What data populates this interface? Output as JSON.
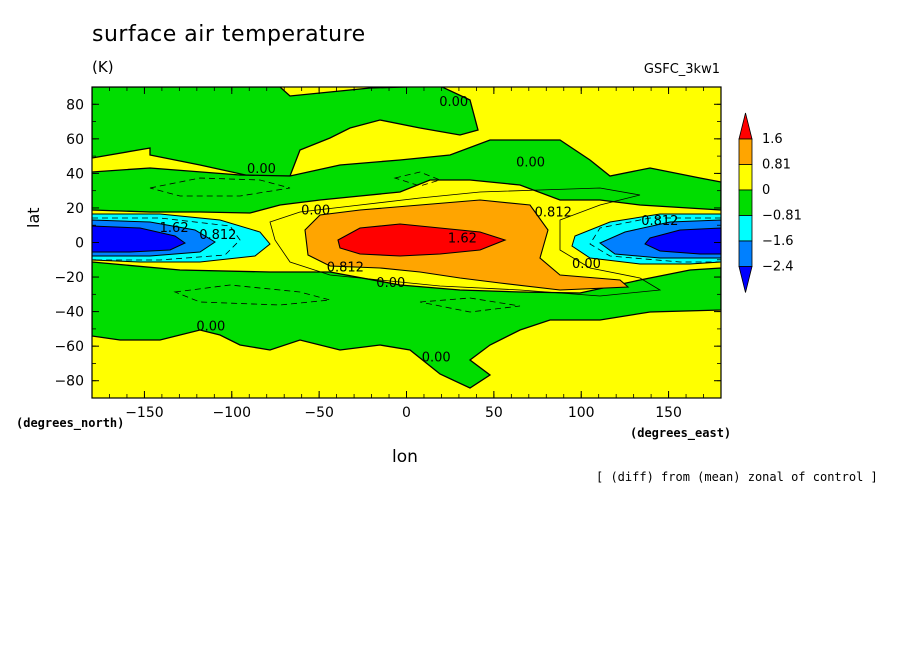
{
  "chart_data": {
    "type": "heatmap",
    "title": "surface air temperature",
    "units": "(K)",
    "model_label": "GSFC_3kw1",
    "xlabel": "lon",
    "ylabel": "lat",
    "x_unit_label": "(degrees_east)",
    "y_unit_label": "(degrees_north)",
    "footnote": "[ (diff) from (mean) zonal of control ]",
    "xlim": [
      -180,
      180
    ],
    "ylim": [
      -90,
      90
    ],
    "x_ticks": [
      -150,
      -100,
      -50,
      0,
      50,
      100,
      150
    ],
    "x_tick_labels": [
      "−150",
      "−100",
      "−50",
      "0",
      "50",
      "100",
      "150"
    ],
    "y_ticks": [
      80,
      60,
      40,
      20,
      0,
      -20,
      -40,
      -60,
      -80
    ],
    "y_tick_labels": [
      "80",
      "60",
      "40",
      "20",
      "0",
      "−20",
      "−40",
      "−60",
      "−80"
    ],
    "colorbar": {
      "levels": [
        -2.4,
        -1.6,
        -0.81,
        0,
        0.81,
        1.6
      ],
      "labels": [
        "1.6",
        "0.81",
        "0",
        "−0.81",
        "−1.6",
        "−2.4"
      ],
      "colors": [
        "#ff0000",
        "#ffa500",
        "#ffff00",
        "#00dd00",
        "#00ffff",
        "#0080ff",
        "#0000ff"
      ]
    },
    "contour_labels": [
      {
        "text": "0.00",
        "lon": 27,
        "lat": 82
      },
      {
        "text": "0.00",
        "lon": 71,
        "lat": 47
      },
      {
        "text": "0.00",
        "lon": -83,
        "lat": 43
      },
      {
        "text": "0.00",
        "lon": -52,
        "lat": 19
      },
      {
        "text": "0.812",
        "lon": 84,
        "lat": 18
      },
      {
        "text": "1.62",
        "lon": 32,
        "lat": 3
      },
      {
        "text": "0.812",
        "lon": -35,
        "lat": -14
      },
      {
        "text": "0.00",
        "lon": -9,
        "lat": -23
      },
      {
        "text": "0.00",
        "lon": 103,
        "lat": -12
      },
      {
        "text": "0.812",
        "lon": 145,
        "lat": 13
      },
      {
        "text": "1.62",
        "lon": -133,
        "lat": 9
      },
      {
        "text": "0.812",
        "lon": -108,
        "lat": 5
      },
      {
        "text": "0.00",
        "lon": -112,
        "lat": -48
      },
      {
        "text": "0.00",
        "lon": 17,
        "lat": -66
      }
    ]
  }
}
